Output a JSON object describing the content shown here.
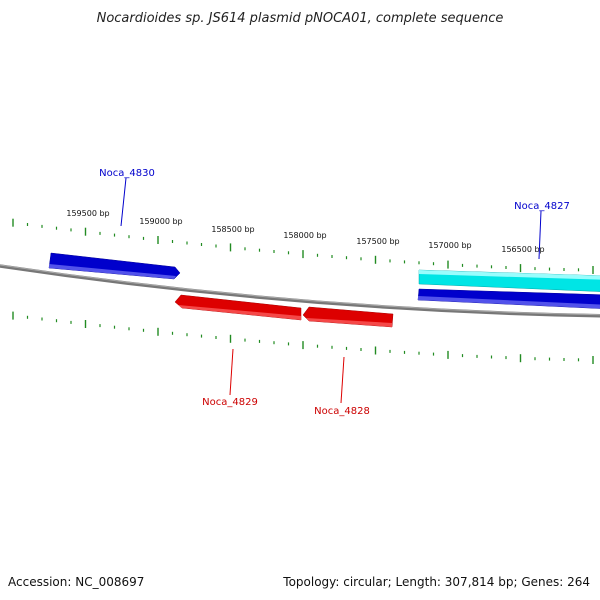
{
  "title": "Nocardioides sp. JS614 plasmid pNOCA01, complete sequence",
  "footer": {
    "accession": "Accession: NC_008697",
    "summary": "Topology: circular; Length: 307,814 bp; Genes: 264"
  },
  "ruler_labels": [
    "159500 bp",
    "159000 bp",
    "158500 bp",
    "158000 bp",
    "157500 bp",
    "157000 bp",
    "156500 bp"
  ],
  "genes": [
    {
      "name": "Noca_4830",
      "strand": "forward",
      "color": "#0000cc"
    },
    {
      "name": "Noca_4829",
      "strand": "reverse",
      "color": "#dd0000"
    },
    {
      "name": "Noca_4828",
      "strand": "reverse",
      "color": "#dd0000"
    },
    {
      "name": "Noca_4827",
      "strand": "forward",
      "color": "#0000cc"
    }
  ],
  "colors": {
    "forward_gene": "#0000cc",
    "reverse_gene": "#dd0000",
    "highlight_gene": "#00e5e5",
    "backbone": "#777777",
    "tick": "#228b22"
  }
}
